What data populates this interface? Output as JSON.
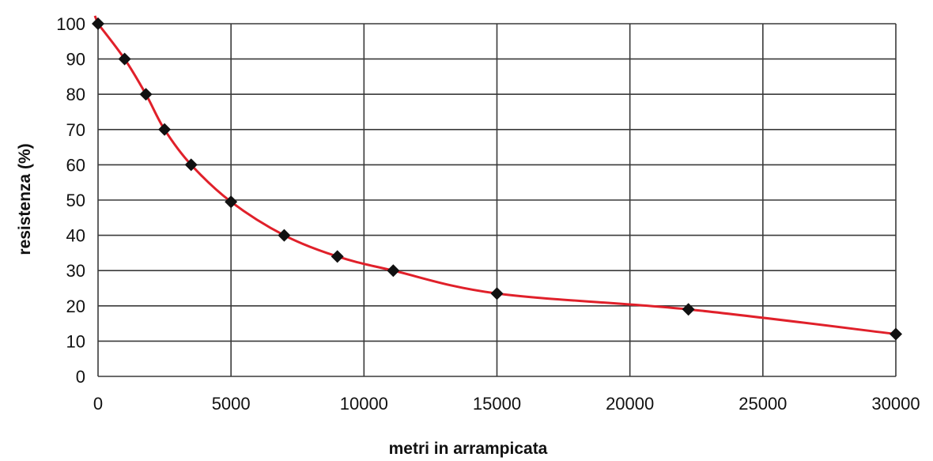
{
  "chart_data": {
    "type": "line",
    "title": "",
    "xlabel": "metri in arrampicata",
    "ylabel": "resistenza (%)",
    "xlim": [
      0,
      30000
    ],
    "ylim": [
      0,
      100
    ],
    "x_ticks": [
      0,
      5000,
      10000,
      15000,
      20000,
      25000,
      30000
    ],
    "y_ticks": [
      0,
      10,
      20,
      30,
      40,
      50,
      60,
      70,
      80,
      90,
      100
    ],
    "grid": true,
    "line_color": "#e0202a",
    "marker_color": "#111111",
    "marker": "diamond",
    "series": [
      {
        "x": [
          0,
          1000,
          1800,
          2500,
          3500,
          5000,
          7000,
          9000,
          11100,
          15000,
          22200,
          30000
        ],
        "y": [
          100,
          90,
          80,
          70,
          60,
          49.5,
          40,
          34,
          30,
          23.5,
          19,
          12
        ]
      }
    ]
  }
}
